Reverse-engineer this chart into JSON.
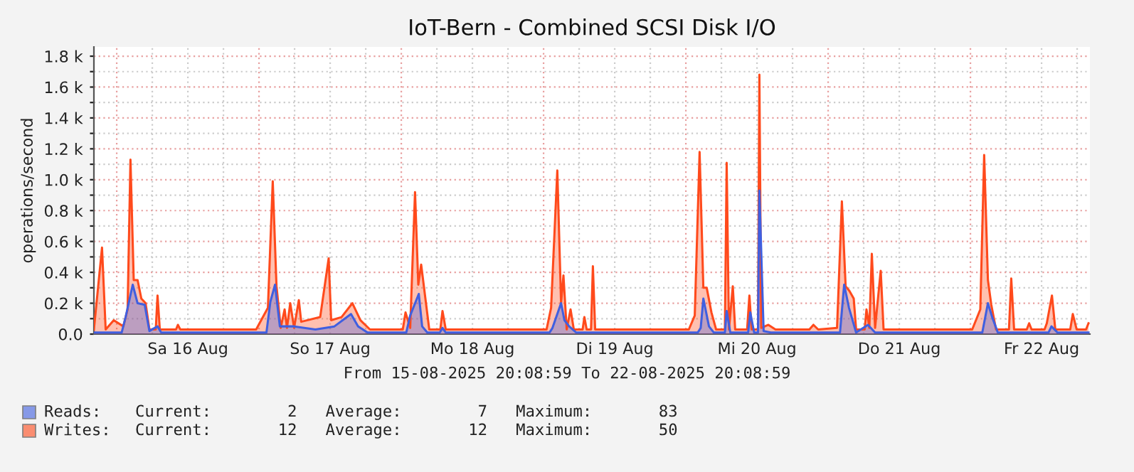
{
  "chart_data": {
    "type": "area",
    "title": "IoT-Bern - Combined SCSI Disk I/O",
    "ylabel": "operations/second",
    "annotations": [
      "From 15-08-2025 20:08:59 To 22-08-2025 20:08:59",
      "Current:        2   Average:        7   Maximum:       83",
      "Current:       12   Average:       12   Maximum:       50"
    ],
    "xlim": [
      "2025-08-15T20:09",
      "2025-08-22T20:09"
    ],
    "xticks": [
      {
        "value": "2025-08-16T00:00",
        "label": null
      },
      {
        "value": "2025-08-16T06:00",
        "label": null
      },
      {
        "value": "2025-08-16T12:00",
        "label": "Sa 16 Aug"
      },
      {
        "value": "2025-08-16T18:00",
        "label": null
      },
      {
        "value": "2025-08-17T00:00",
        "label": null
      },
      {
        "value": "2025-08-17T06:00",
        "label": null
      },
      {
        "value": "2025-08-17T12:00",
        "label": "So 17 Aug"
      },
      {
        "value": "2025-08-17T18:00",
        "label": null
      },
      {
        "value": "2025-08-18T00:00",
        "label": null
      },
      {
        "value": "2025-08-18T06:00",
        "label": null
      },
      {
        "value": "2025-08-18T12:00",
        "label": "Mo 18 Aug"
      },
      {
        "value": "2025-08-18T18:00",
        "label": null
      },
      {
        "value": "2025-08-19T00:00",
        "label": null
      },
      {
        "value": "2025-08-19T06:00",
        "label": null
      },
      {
        "value": "2025-08-19T12:00",
        "label": "Di 19 Aug"
      },
      {
        "value": "2025-08-19T18:00",
        "label": null
      },
      {
        "value": "2025-08-20T00:00",
        "label": null
      },
      {
        "value": "2025-08-20T06:00",
        "label": null
      },
      {
        "value": "2025-08-20T12:00",
        "label": "Mi 20 Aug"
      },
      {
        "value": "2025-08-20T18:00",
        "label": null
      },
      {
        "value": "2025-08-21T00:00",
        "label": null
      },
      {
        "value": "2025-08-21T06:00",
        "label": null
      },
      {
        "value": "2025-08-21T12:00",
        "label": "Do 21 Aug"
      },
      {
        "value": "2025-08-21T18:00",
        "label": null
      },
      {
        "value": "2025-08-22T00:00",
        "label": null
      },
      {
        "value": "2025-08-22T06:00",
        "label": null
      },
      {
        "value": "2025-08-22T12:00",
        "label": "Fr 22 Aug"
      },
      {
        "value": "2025-08-22T18:00",
        "label": null
      }
    ],
    "ylim": [
      0,
      1860
    ],
    "yticks": [
      {
        "value": 0,
        "label": "0.0"
      },
      {
        "value": 100,
        "label": null
      },
      {
        "value": 200,
        "label": "0.2 k"
      },
      {
        "value": 300,
        "label": null
      },
      {
        "value": 400,
        "label": "0.4 k"
      },
      {
        "value": 500,
        "label": null
      },
      {
        "value": 600,
        "label": "0.6 k"
      },
      {
        "value": 700,
        "label": null
      },
      {
        "value": 800,
        "label": "0.8 k"
      },
      {
        "value": 900,
        "label": null
      },
      {
        "value": 1000,
        "label": "1.0 k"
      },
      {
        "value": 1100,
        "label": null
      },
      {
        "value": 1200,
        "label": "1.2 k"
      },
      {
        "value": 1300,
        "label": null
      },
      {
        "value": 1400,
        "label": "1.4 k"
      },
      {
        "value": 1500,
        "label": null
      },
      {
        "value": 1600,
        "label": "1.6 k"
      },
      {
        "value": 1700,
        "label": null
      },
      {
        "value": 1800,
        "label": "1.8 k"
      }
    ],
    "grid": true,
    "legend": "bottom left",
    "series": [
      {
        "name": "Writes:",
        "color": "#ff4a1c",
        "x": [
          "2025-08-15T20:09",
          "2025-08-15T21:31",
          "2025-08-15T22:08",
          "2025-08-15T23:30",
          "2025-08-16T01:07",
          "2025-08-16T01:50",
          "2025-08-16T02:19",
          "2025-08-16T02:52",
          "2025-08-16T03:31",
          "2025-08-16T04:09",
          "2025-08-16T04:52",
          "2025-08-16T05:31",
          "2025-08-16T06:35",
          "2025-08-16T06:53",
          "2025-08-16T07:16",
          "2025-08-16T10:00",
          "2025-08-16T10:19",
          "2025-08-16T10:43",
          "2025-08-16T23:31",
          "2025-08-17T01:30",
          "2025-08-17T02:19",
          "2025-08-17T02:57",
          "2025-08-17T03:40",
          "2025-08-17T04:19",
          "2025-08-17T04:43",
          "2025-08-17T05:16",
          "2025-08-17T05:55",
          "2025-08-17T06:43",
          "2025-08-17T07:07",
          "2025-08-17T10:19",
          "2025-08-17T11:45",
          "2025-08-17T12:10",
          "2025-08-17T13:55",
          "2025-08-17T15:45",
          "2025-08-17T17:06",
          "2025-08-17T18:43",
          "2025-08-18T00:15",
          "2025-08-18T00:43",
          "2025-08-18T01:30",
          "2025-08-18T02:19",
          "2025-08-18T02:52",
          "2025-08-18T03:21",
          "2025-08-18T04:43",
          "2025-08-18T06:35",
          "2025-08-18T06:57",
          "2025-08-18T07:30",
          "2025-08-19T00:30",
          "2025-08-19T01:16",
          "2025-08-19T02:19",
          "2025-08-19T02:57",
          "2025-08-19T03:21",
          "2025-08-19T03:54",
          "2025-08-19T04:33",
          "2025-08-19T05:06",
          "2025-08-19T06:35",
          "2025-08-19T06:53",
          "2025-08-19T07:16",
          "2025-08-19T08:00",
          "2025-08-19T08:19",
          "2025-08-19T08:42",
          "2025-08-20T00:30",
          "2025-08-20T01:30",
          "2025-08-20T02:19",
          "2025-08-20T02:57",
          "2025-08-20T03:31",
          "2025-08-20T04:19",
          "2025-08-20T05:06",
          "2025-08-20T06:35",
          "2025-08-20T06:53",
          "2025-08-20T07:16",
          "2025-08-20T07:55",
          "2025-08-20T08:19",
          "2025-08-20T10:20",
          "2025-08-20T10:43",
          "2025-08-20T11:06",
          "2025-08-20T12:10",
          "2025-08-20T12:24",
          "2025-08-20T12:43",
          "2025-08-20T13:55",
          "2025-08-20T15:07",
          "2025-08-20T20:50",
          "2025-08-20T21:31",
          "2025-08-20T22:19",
          "2025-08-21T01:30",
          "2025-08-21T02:19",
          "2025-08-21T02:57",
          "2025-08-21T03:35",
          "2025-08-21T04:19",
          "2025-08-21T04:43",
          "2025-08-21T06:10",
          "2025-08-21T06:28",
          "2025-08-21T06:57",
          "2025-08-21T07:22",
          "2025-08-21T07:55",
          "2025-08-21T08:52",
          "2025-08-21T09:21",
          "2025-08-22T00:18",
          "2025-08-22T01:40",
          "2025-08-22T02:19",
          "2025-08-22T02:57",
          "2025-08-22T03:31",
          "2025-08-22T04:19",
          "2025-08-22T06:30",
          "2025-08-22T06:53",
          "2025-08-22T07:22",
          "2025-08-22T09:30",
          "2025-08-22T09:54",
          "2025-08-22T10:19",
          "2025-08-22T12:30",
          "2025-08-22T12:53",
          "2025-08-22T13:45",
          "2025-08-22T14:19",
          "2025-08-22T16:50",
          "2025-08-22T17:16",
          "2025-08-22T17:55",
          "2025-08-22T19:30",
          "2025-08-22T19:55"
        ],
        "values": [
          30,
          560,
          30,
          90,
          50,
          160,
          1130,
          350,
          350,
          230,
          200,
          30,
          30,
          250,
          30,
          30,
          60,
          30,
          30,
          170,
          990,
          310,
          40,
          160,
          40,
          200,
          40,
          220,
          80,
          110,
          490,
          90,
          110,
          200,
          90,
          30,
          30,
          140,
          40,
          920,
          320,
          450,
          30,
          30,
          150,
          30,
          30,
          170,
          1060,
          200,
          380,
          30,
          160,
          30,
          30,
          110,
          30,
          30,
          440,
          30,
          30,
          120,
          1180,
          300,
          300,
          140,
          30,
          30,
          1110,
          30,
          310,
          30,
          30,
          250,
          30,
          30,
          1680,
          40,
          60,
          30,
          30,
          60,
          30,
          40,
          860,
          310,
          280,
          230,
          30,
          30,
          160,
          40,
          520,
          40,
          410,
          30,
          30,
          160,
          1160,
          350,
          190,
          30,
          30,
          360,
          30,
          30,
          70,
          30,
          30,
          70,
          250,
          30,
          30,
          130,
          30,
          30,
          70
        ]
      },
      {
        "name": "Reads:",
        "color": "#3f5fe0",
        "x": [
          "2025-08-15T20:09",
          "2025-08-16T00:50",
          "2025-08-16T01:30",
          "2025-08-16T02:42",
          "2025-08-16T03:31",
          "2025-08-16T04:43",
          "2025-08-16T05:31",
          "2025-08-16T06:53",
          "2025-08-16T07:30",
          "2025-08-16T23:55",
          "2025-08-17T01:15",
          "2025-08-17T01:55",
          "2025-08-17T02:42",
          "2025-08-17T03:31",
          "2025-08-17T05:55",
          "2025-08-17T09:31",
          "2025-08-17T12:43",
          "2025-08-17T15:31",
          "2025-08-17T16:43",
          "2025-08-17T18:18",
          "2025-08-18T00:50",
          "2025-08-18T01:30",
          "2025-08-18T02:57",
          "2025-08-18T03:31",
          "2025-08-18T04:23",
          "2025-08-18T06:30",
          "2025-08-18T06:57",
          "2025-08-18T07:30",
          "2025-08-19T01:00",
          "2025-08-19T01:30",
          "2025-08-19T02:57",
          "2025-08-19T03:31",
          "2025-08-19T04:19",
          "2025-08-19T05:31",
          "2025-08-20T02:00",
          "2025-08-20T02:30",
          "2025-08-20T02:57",
          "2025-08-20T03:54",
          "2025-08-20T04:43",
          "2025-08-20T06:35",
          "2025-08-20T06:53",
          "2025-08-20T07:30",
          "2025-08-20T10:30",
          "2025-08-20T10:52",
          "2025-08-20T11:31",
          "2025-08-20T12:10",
          "2025-08-20T12:24",
          "2025-08-20T13:07",
          "2025-08-20T14:19",
          "2025-08-21T02:00",
          "2025-08-21T02:42",
          "2025-08-21T03:31",
          "2025-08-21T04:43",
          "2025-08-21T06:43",
          "2025-08-21T07:55",
          "2025-08-22T02:00",
          "2025-08-22T02:57",
          "2025-08-22T03:40",
          "2025-08-22T04:37",
          "2025-08-22T13:10",
          "2025-08-22T13:40",
          "2025-08-22T14:42",
          "2025-08-22T19:55"
        ],
        "values": [
          10,
          10,
          110,
          320,
          200,
          190,
          20,
          50,
          10,
          10,
          10,
          210,
          320,
          50,
          50,
          30,
          50,
          130,
          50,
          10,
          10,
          120,
          260,
          50,
          10,
          10,
          40,
          10,
          10,
          40,
          200,
          90,
          50,
          10,
          10,
          40,
          230,
          50,
          10,
          10,
          150,
          10,
          10,
          140,
          10,
          10,
          930,
          20,
          10,
          10,
          320,
          170,
          10,
          60,
          10,
          10,
          200,
          110,
          10,
          10,
          50,
          10,
          10
        ]
      }
    ]
  }
}
